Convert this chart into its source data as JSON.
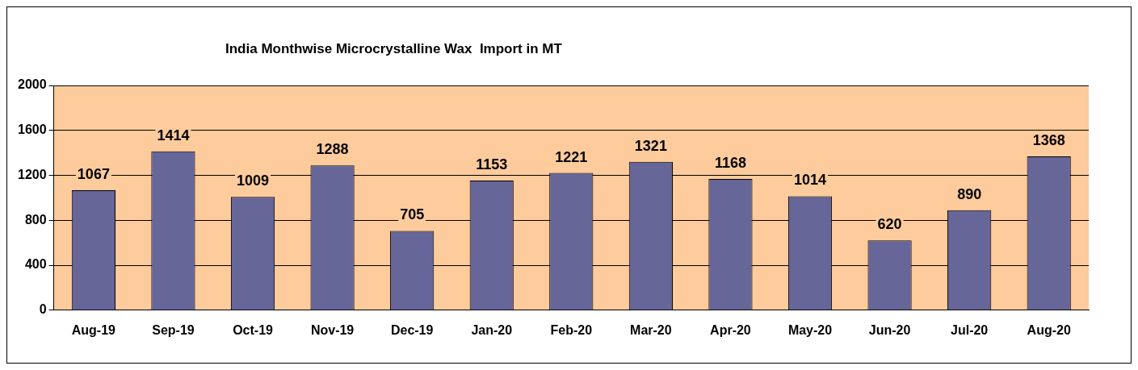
{
  "chart_data": {
    "type": "bar",
    "title": "India Monthwise Microcrystalline Wax  Import in MT",
    "categories": [
      "Aug-19",
      "Sep-19",
      "Oct-19",
      "Nov-19",
      "Dec-19",
      "Jan-20",
      "Feb-20",
      "Mar-20",
      "Apr-20",
      "May-20",
      "Jun-20",
      "Jul-20",
      "Aug-20"
    ],
    "values": [
      1067,
      1414,
      1009,
      1288,
      705,
      1153,
      1221,
      1321,
      1168,
      1014,
      620,
      890,
      1368
    ],
    "color": "#666699",
    "ylim": [
      0,
      2000
    ],
    "yticks": [
      0,
      400,
      800,
      1200,
      1600,
      2000
    ],
    "grid": "y",
    "data_labels": true,
    "legend": false
  }
}
